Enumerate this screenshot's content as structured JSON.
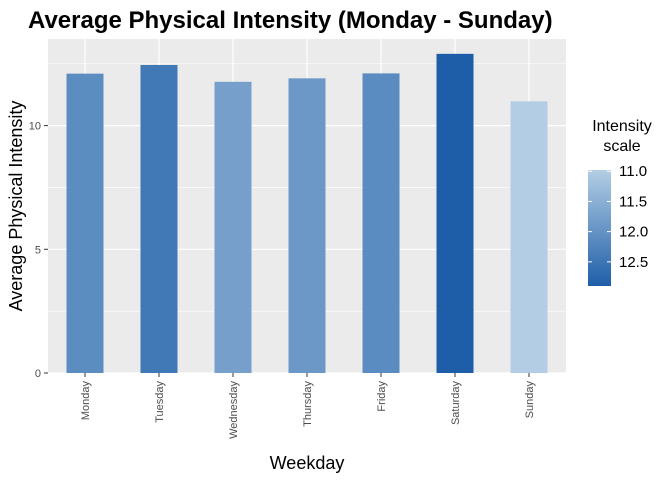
{
  "chart_data": {
    "type": "bar",
    "title": "Average Physical Intensity (Monday - Sunday)",
    "xlabel": "Weekday",
    "ylabel": "Average Physical Intensity",
    "categories": [
      "Monday",
      "Tuesday",
      "Wednesday",
      "Thursday",
      "Friday",
      "Saturday",
      "Sunday"
    ],
    "values": [
      12.1,
      12.45,
      11.77,
      11.91,
      12.11,
      12.9,
      10.98
    ],
    "ylim": [
      0,
      13.5
    ],
    "yticks": [
      "0",
      "5",
      "10"
    ],
    "grid": true,
    "legend": {
      "title_lines": [
        "Intensity",
        "scale"
      ],
      "position": "right",
      "ticks": [
        "11.0",
        "11.5",
        "12.0",
        "12.5"
      ],
      "tick_values": [
        11.0,
        11.5,
        12.0,
        12.5
      ],
      "range": [
        10.98,
        12.9
      ],
      "low_color": "#b3cee4",
      "high_color": "#1e5ea8"
    },
    "panel_color": "#ebebeb",
    "grid_color": "#ffffff"
  }
}
